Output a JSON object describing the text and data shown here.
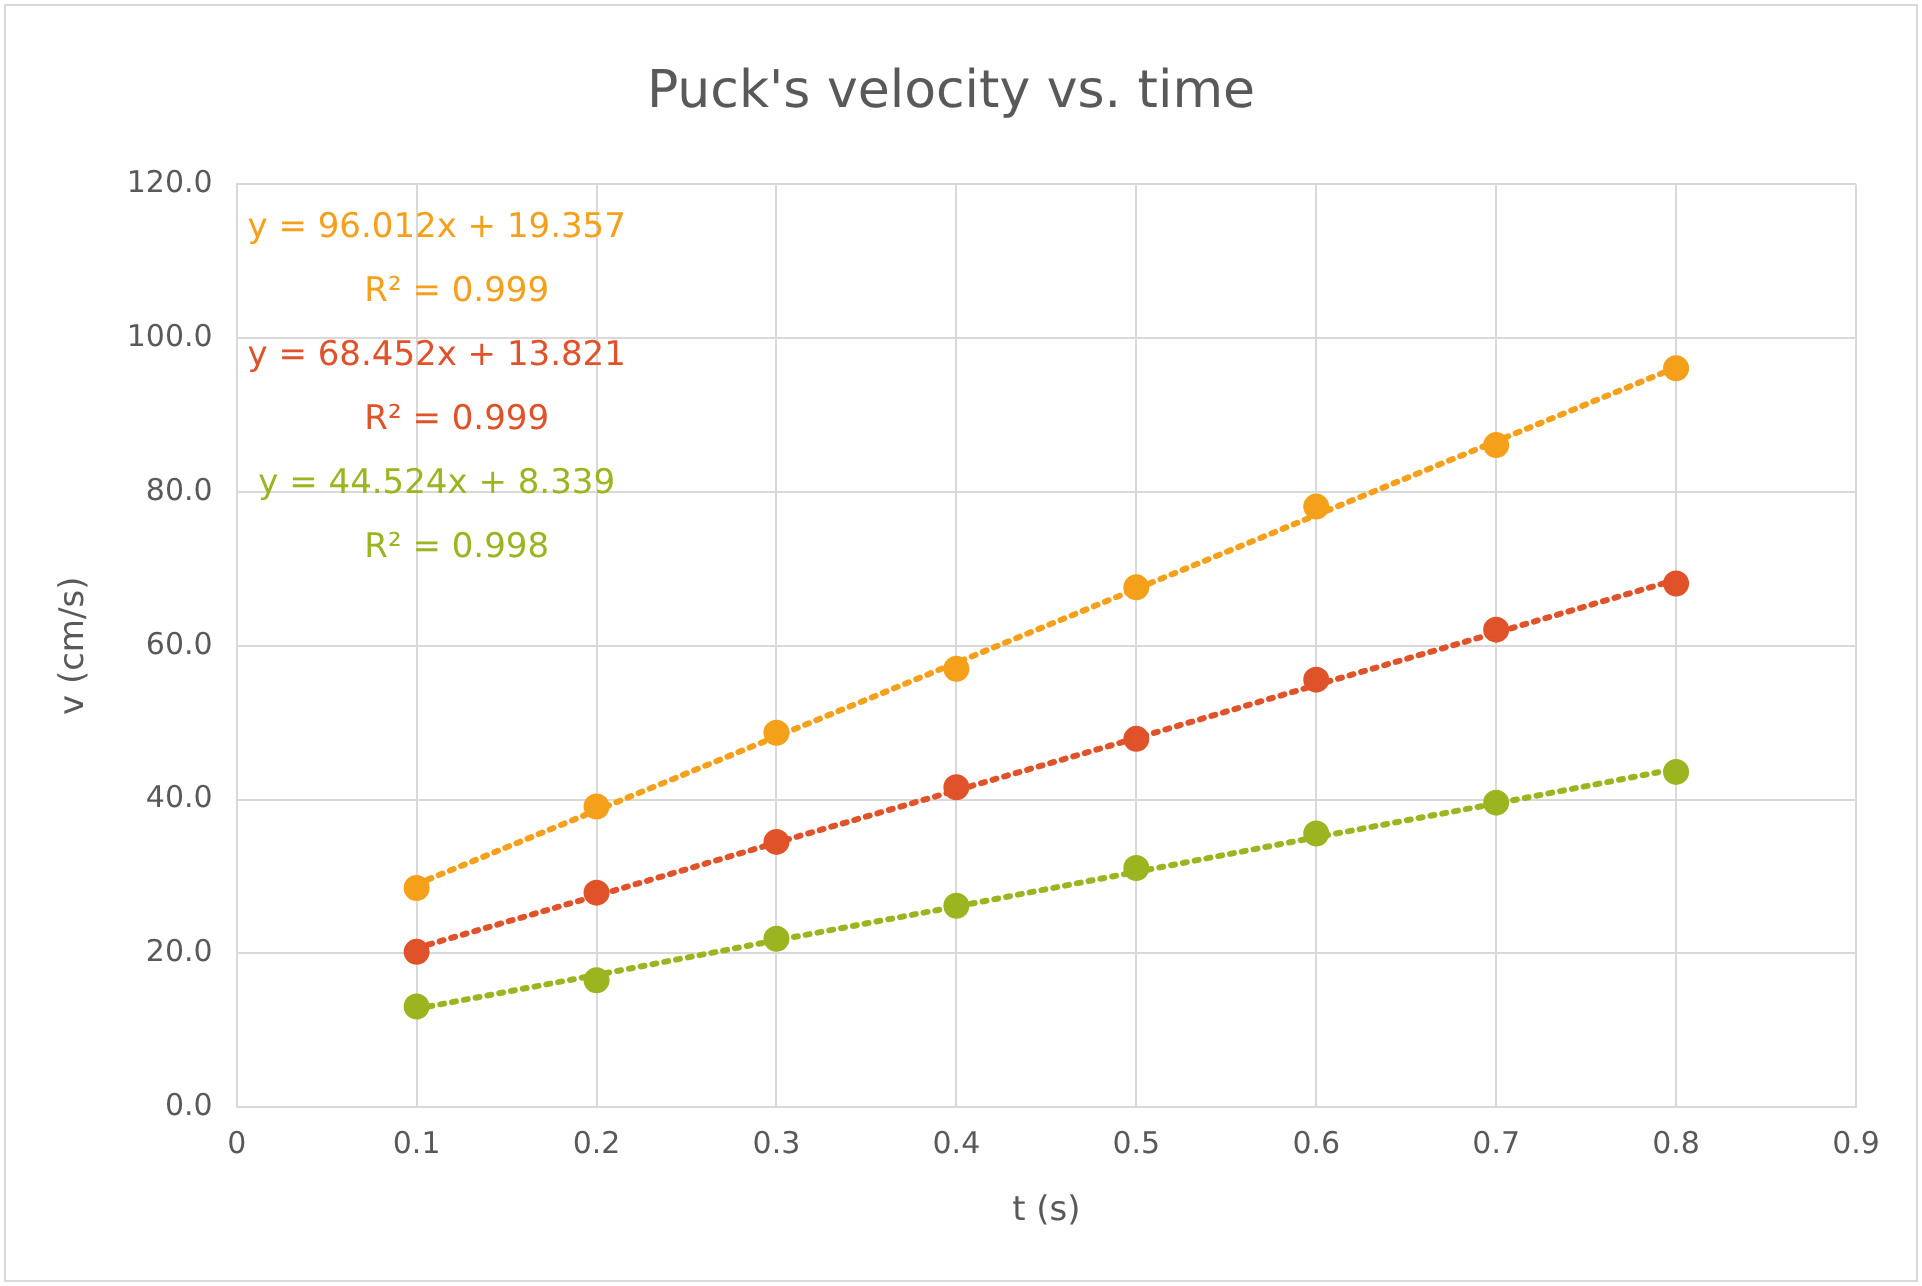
{
  "chart_data": {
    "type": "scatter",
    "title": "Puck's velocity vs. time",
    "xlabel": "t (s)",
    "ylabel": "v (cm/s)",
    "x": [
      0.1,
      0.2,
      0.3,
      0.4,
      0.5,
      0.6,
      0.7,
      0.8
    ],
    "series": [
      {
        "color": "#f5a01a",
        "values": [
          28.5,
          39.1,
          48.7,
          57.0,
          67.6,
          78.1,
          86.1,
          96.1
        ]
      },
      {
        "color": "#e0522a",
        "values": [
          20.2,
          27.9,
          34.5,
          41.6,
          47.9,
          55.6,
          62.1,
          68.1
        ]
      },
      {
        "color": "#9bb520",
        "values": [
          13.1,
          16.5,
          21.9,
          26.2,
          31.1,
          35.6,
          39.6,
          43.6
        ]
      },
      {
        "type": "line",
        "color": "#f5a01a",
        "values": [
          29.0,
          38.6,
          48.2,
          57.8,
          67.4,
          77.0,
          86.6,
          96.2
        ],
        "line_style": "dotted",
        "marker": "none"
      },
      {
        "type": "line",
        "color": "#e0522a",
        "values": [
          20.7,
          27.5,
          34.4,
          41.2,
          48.0,
          54.9,
          61.7,
          68.6
        ],
        "line_style": "dotted",
        "marker": "none"
      },
      {
        "type": "line",
        "color": "#9bb520",
        "values": [
          12.8,
          17.2,
          21.7,
          26.1,
          30.6,
          35.1,
          39.5,
          44.0
        ],
        "line_style": "dotted",
        "marker": "none"
      }
    ],
    "annotations": [
      "y = 96.012x + 19.357",
      "R² = 0.999",
      "y = 68.452x + 13.821",
      "R² = 0.999",
      "y = 44.524x + 8.339",
      "R² = 0.998"
    ],
    "xlim": [
      0,
      0.9
    ],
    "xticks": [
      0,
      0.1,
      0.2,
      0.3,
      0.4,
      0.5,
      0.6,
      0.7,
      0.8,
      0.9
    ],
    "ylim": [
      0,
      120
    ],
    "yticks": [
      {
        "value": 0,
        "label": "0.0"
      },
      {
        "value": 20,
        "label": "20.0"
      },
      {
        "value": 40,
        "label": "40.0"
      },
      {
        "value": 60,
        "label": "60.0"
      },
      {
        "value": 80,
        "label": "80.0"
      },
      {
        "value": 100,
        "label": "100.0"
      },
      {
        "value": 120,
        "label": "120.0"
      }
    ],
    "grid": true,
    "legend": false,
    "marker": "circle"
  }
}
